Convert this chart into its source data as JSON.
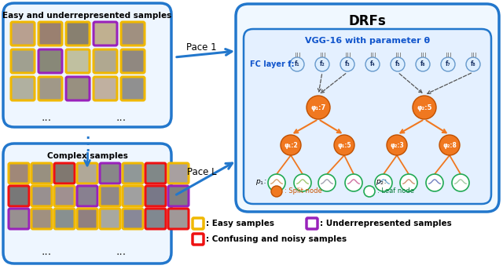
{
  "fig_width": 6.4,
  "fig_height": 3.43,
  "dpi": 100,
  "bg_color": "#ffffff",
  "title_text": "DRFs",
  "vgg_text": "VGG-16 with parameter θ",
  "fc_text": "FC layer f:",
  "pace1_text": "Pace 1",
  "paceL_text": "Pace L",
  "easy_box1_title": "Easy and underrepresented samples",
  "easy_box2_title": "Complex samples",
  "legend_easy": ": Easy samples",
  "legend_under": ": Underrepresented samples",
  "legend_confuse": ": Confusing and noisy samples",
  "box_blue": "#2277cc",
  "orange_node_color": "#f07820",
  "orange_node_edge": "#c05000",
  "leaf_node_color": "#ffffff",
  "leaf_node_edge": "#22aa55",
  "fc_node_color": "#ddeeff",
  "fc_node_edge": "#6699cc",
  "fc_label_color": "#1155cc",
  "vgg_label_color": "#1155cc",
  "pace_arrow_color": "#2277cc",
  "dashed_color": "#555555",
  "border_easy_yellow": "#f0b800",
  "border_under_purple": "#9922bb",
  "border_confuse_red": "#ee1111",
  "split_node_labels": [
    "φ₁:7",
    "φ₁:2",
    "φ₁:5",
    "φ₂:5",
    "φ₂:3",
    "φ₂:8"
  ],
  "fc_labels": [
    "f₁",
    "f₂",
    "f₃",
    "f₄",
    "f₅",
    "f₆",
    "f₇",
    "f₈"
  ],
  "face_colors_box1": [
    "Y",
    "Y",
    "Y",
    "P",
    "Y",
    "Y",
    "P",
    "Y",
    "Y",
    "Y",
    "Y",
    "P",
    "Y",
    "Y",
    "Y"
  ],
  "face_cols_box1_row0": [
    "Y",
    "Y",
    "Y",
    "P",
    "Y"
  ],
  "face_cols_box1_row1": [
    "Y",
    "P",
    "Y",
    "Y",
    "Y",
    "P"
  ],
  "face_cols_box1_row2": [
    "Y",
    "Y",
    "P",
    "Y",
    "Y"
  ],
  "face_cols_box2_row0": [
    "Y",
    "Y",
    "R",
    "Y",
    "P",
    "Y",
    "R",
    "Y"
  ],
  "face_cols_box2_row1": [
    "R",
    "Y",
    "Y",
    "P",
    "Y",
    "Y",
    "R",
    "Y",
    "P"
  ],
  "face_cols_box2_row2": [
    "P",
    "Y",
    "Y",
    "Y",
    "Y",
    "Y",
    "R",
    "Y",
    "R"
  ],
  "leaf_curve_colors_left": [
    "#d4a070",
    "#a0c870",
    "#a0a0b0",
    "#d070a0"
  ],
  "leaf_curve_colors_right": [
    "#70a8d0",
    "#d09070",
    "#7080c0",
    "#a0c8a0"
  ]
}
